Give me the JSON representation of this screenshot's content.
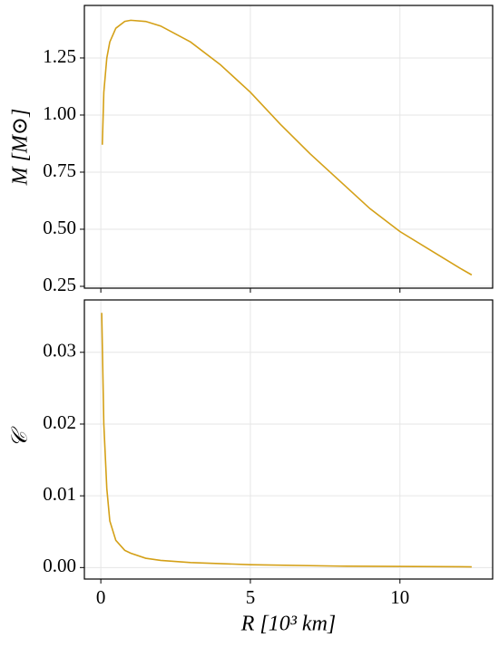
{
  "chart_data": [
    {
      "type": "line",
      "ylabel": "M [M⊙]",
      "x": [
        0.05,
        0.1,
        0.2,
        0.3,
        0.5,
        0.8,
        1.0,
        1.5,
        2,
        3,
        4,
        5,
        6,
        7,
        8,
        9,
        10,
        11,
        12,
        12.4
      ],
      "series": [
        {
          "name": "M",
          "color": "#d4a017",
          "values": [
            0.87,
            1.1,
            1.25,
            1.32,
            1.38,
            1.41,
            1.415,
            1.41,
            1.39,
            1.32,
            1.22,
            1.1,
            0.96,
            0.83,
            0.71,
            0.59,
            0.49,
            0.41,
            0.33,
            0.3
          ]
        }
      ],
      "xlim": [
        -0.55,
        13.1
      ],
      "xticks": [
        0,
        5,
        10
      ],
      "ylim": [
        0.242,
        1.48
      ],
      "yticks": [
        0.25,
        {
          "value": 0.5,
          "label": "0.50"
        },
        0.75,
        {
          "value": 1,
          "label": "1.00"
        },
        1.25
      ],
      "grid": true
    },
    {
      "type": "line",
      "ylabel": "𝒞",
      "xlabel": "R [10³ km]",
      "x": [
        0.03,
        0.1,
        0.2,
        0.3,
        0.5,
        0.8,
        1.0,
        1.5,
        2,
        3,
        5,
        8,
        12.4
      ],
      "series": [
        {
          "name": "C",
          "color": "#d4a017",
          "values": [
            0.0355,
            0.02,
            0.011,
            0.0065,
            0.0038,
            0.0024,
            0.002,
            0.0013,
            0.001,
            0.0007,
            0.0004,
            0.0002,
            0.0001
          ]
        }
      ],
      "xlim": [
        -0.55,
        13.1
      ],
      "xticks": [
        0,
        5,
        10
      ],
      "ylim": [
        -0.0016,
        0.0373
      ],
      "yticks": [
        {
          "value": 0,
          "label": "0.00"
        },
        0.01,
        0.02,
        0.03
      ],
      "grid": true
    }
  ]
}
